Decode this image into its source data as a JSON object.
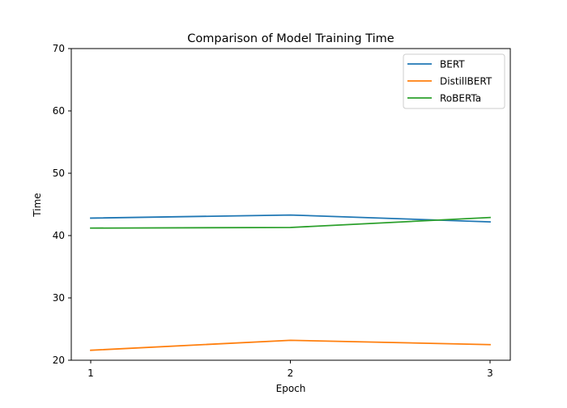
{
  "chart_data": {
    "type": "line",
    "title": "Comparison of Model Training Time",
    "xlabel": "Epoch",
    "ylabel": "Time",
    "x": [
      1,
      2,
      3
    ],
    "xticks": [
      "1",
      "2",
      "3"
    ],
    "yticks": [
      "20",
      "30",
      "40",
      "50",
      "60",
      "70"
    ],
    "ylim": [
      20,
      70
    ],
    "grid": false,
    "legend_position": "top-right",
    "series": [
      {
        "name": "BERT",
        "color": "#1f77b4",
        "values": [
          42.8,
          43.3,
          42.2
        ]
      },
      {
        "name": "DistillBERT",
        "color": "#ff7f0e",
        "values": [
          21.6,
          23.2,
          22.5
        ]
      },
      {
        "name": "RoBERTa",
        "color": "#2ca02c",
        "values": [
          41.2,
          41.3,
          42.9
        ]
      }
    ]
  }
}
